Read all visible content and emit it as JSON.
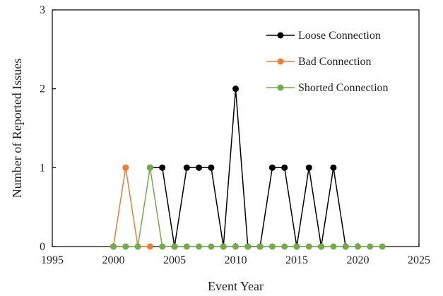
{
  "chart_data": {
    "type": "line",
    "xlabel": "Event Year",
    "ylabel": "Number of Reported Issues",
    "xlim": [
      1995,
      2025
    ],
    "ylim": [
      0,
      3
    ],
    "xticks": [
      1995,
      2000,
      2005,
      2010,
      2015,
      2020,
      2025
    ],
    "yticks": [
      0,
      1,
      2,
      3
    ],
    "grid": false,
    "legend": "top-right",
    "series": [
      {
        "name": "Loose Connection",
        "color": "#000000",
        "x": [
          2003,
          2004,
          2005,
          2006,
          2007,
          2008,
          2009,
          2010,
          2011,
          2012,
          2013,
          2014,
          2015,
          2016,
          2017,
          2018,
          2019
        ],
        "y": [
          1,
          1,
          0,
          1,
          1,
          1,
          0,
          2,
          0,
          0,
          1,
          1,
          0,
          1,
          0,
          1,
          0
        ]
      },
      {
        "name": "Bad Connection",
        "color": "#ed7d31",
        "x": [
          2000,
          2001,
          2002,
          2003
        ],
        "y": [
          0,
          1,
          0,
          0
        ]
      },
      {
        "name": "Shorted Connection",
        "color": "#70ad47",
        "x": [
          2000,
          2001,
          2002,
          2003,
          2004,
          2005,
          2006,
          2007,
          2008,
          2009,
          2010,
          2011,
          2012,
          2013,
          2014,
          2015,
          2016,
          2017,
          2018,
          2019,
          2020,
          2021,
          2022
        ],
        "y": [
          0,
          0,
          0,
          1,
          0,
          0,
          0,
          0,
          0,
          0,
          0,
          0,
          0,
          0,
          0,
          0,
          0,
          0,
          0,
          0,
          0,
          0,
          0
        ]
      }
    ]
  }
}
